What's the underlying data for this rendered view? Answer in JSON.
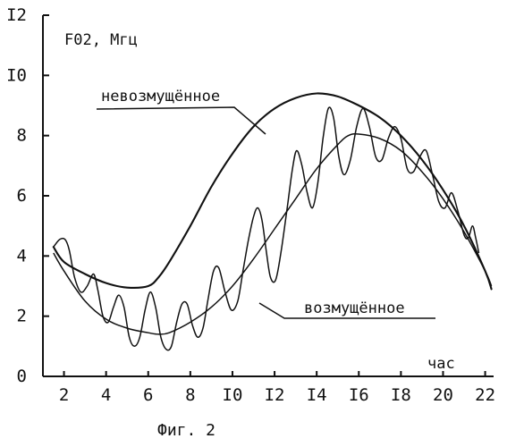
{
  "chart_data": {
    "type": "line",
    "title": "",
    "ylabel": "F02, Мгц",
    "xlabel": "час",
    "caption": "Фиг. 2",
    "xlim": [
      1,
      22.4
    ],
    "ylim": [
      0,
      12
    ],
    "x_ticks": [
      2,
      4,
      6,
      8,
      10,
      12,
      14,
      16,
      18,
      20,
      22
    ],
    "x_tick_labels": [
      "2",
      "4",
      "6",
      "8",
      "I0",
      "I2",
      "I4",
      "I6",
      "I8",
      "20",
      "22"
    ],
    "y_ticks": [
      0,
      2,
      4,
      6,
      8,
      10,
      12
    ],
    "y_tick_labels": [
      "0",
      "2",
      "4",
      "6",
      "8",
      "I0",
      "I2"
    ],
    "grid": false,
    "series": [
      {
        "name": "невозмущённое",
        "style": "solid-thick",
        "points": [
          [
            1.5,
            4.3
          ],
          [
            2,
            3.8
          ],
          [
            3,
            3.4
          ],
          [
            4,
            3.1
          ],
          [
            5,
            2.95
          ],
          [
            6,
            3.0
          ],
          [
            6.5,
            3.3
          ],
          [
            7,
            3.8
          ],
          [
            8,
            5.0
          ],
          [
            9,
            6.3
          ],
          [
            10,
            7.4
          ],
          [
            11,
            8.3
          ],
          [
            12,
            8.9
          ],
          [
            13,
            9.25
          ],
          [
            14,
            9.4
          ],
          [
            15,
            9.3
          ],
          [
            16,
            9.0
          ],
          [
            17,
            8.6
          ],
          [
            18,
            8.0
          ],
          [
            19,
            7.2
          ],
          [
            20,
            6.2
          ],
          [
            21,
            5.0
          ],
          [
            22,
            3.5
          ],
          [
            22.3,
            2.9
          ]
        ]
      },
      {
        "name": "",
        "style": "solid-thin-trend",
        "points": [
          [
            1.5,
            4.1
          ],
          [
            2,
            3.5
          ],
          [
            3,
            2.5
          ],
          [
            4,
            1.9
          ],
          [
            5,
            1.6
          ],
          [
            6,
            1.45
          ],
          [
            6.5,
            1.4
          ],
          [
            7,
            1.45
          ],
          [
            8,
            1.8
          ],
          [
            9,
            2.3
          ],
          [
            10,
            3.0
          ],
          [
            11,
            3.9
          ],
          [
            12,
            4.9
          ],
          [
            13,
            5.9
          ],
          [
            14,
            6.9
          ],
          [
            15,
            7.7
          ],
          [
            15.5,
            8.0
          ],
          [
            16,
            8.05
          ],
          [
            17,
            7.9
          ],
          [
            18,
            7.5
          ],
          [
            19,
            6.8
          ],
          [
            20,
            5.9
          ],
          [
            21,
            4.8
          ],
          [
            22,
            3.5
          ],
          [
            22.3,
            3.0
          ]
        ]
      },
      {
        "name": "возмущённое",
        "style": "oscillating",
        "points": [
          [
            1.5,
            4.3
          ],
          [
            1.8,
            4.55
          ],
          [
            2.05,
            4.55
          ],
          [
            2.25,
            4.2
          ],
          [
            2.5,
            3.3
          ],
          [
            2.8,
            2.8
          ],
          [
            3.1,
            3.0
          ],
          [
            3.4,
            3.4
          ],
          [
            3.6,
            2.9
          ],
          [
            3.85,
            2.0
          ],
          [
            4.1,
            1.8
          ],
          [
            4.35,
            2.3
          ],
          [
            4.6,
            2.7
          ],
          [
            4.85,
            2.3
          ],
          [
            5.1,
            1.3
          ],
          [
            5.35,
            1.0
          ],
          [
            5.6,
            1.3
          ],
          [
            5.85,
            2.2
          ],
          [
            6.1,
            2.8
          ],
          [
            6.35,
            2.3
          ],
          [
            6.6,
            1.3
          ],
          [
            6.85,
            0.9
          ],
          [
            7.1,
            1.0
          ],
          [
            7.35,
            1.8
          ],
          [
            7.6,
            2.4
          ],
          [
            7.85,
            2.4
          ],
          [
            8.1,
            1.7
          ],
          [
            8.35,
            1.3
          ],
          [
            8.6,
            1.6
          ],
          [
            8.85,
            2.6
          ],
          [
            9.1,
            3.5
          ],
          [
            9.35,
            3.6
          ],
          [
            9.65,
            2.8
          ],
          [
            9.95,
            2.2
          ],
          [
            10.25,
            2.5
          ],
          [
            10.5,
            3.5
          ],
          [
            10.75,
            4.5
          ],
          [
            11,
            5.3
          ],
          [
            11.2,
            5.6
          ],
          [
            11.4,
            5.2
          ],
          [
            11.6,
            4.2
          ],
          [
            11.8,
            3.3
          ],
          [
            12.05,
            3.2
          ],
          [
            12.3,
            4.1
          ],
          [
            12.6,
            5.6
          ],
          [
            12.85,
            6.9
          ],
          [
            13.05,
            7.5
          ],
          [
            13.3,
            7.0
          ],
          [
            13.55,
            6.1
          ],
          [
            13.8,
            5.6
          ],
          [
            14.05,
            6.4
          ],
          [
            14.3,
            7.9
          ],
          [
            14.55,
            8.9
          ],
          [
            14.8,
            8.6
          ],
          [
            15.05,
            7.3
          ],
          [
            15.3,
            6.7
          ],
          [
            15.6,
            7.2
          ],
          [
            15.9,
            8.3
          ],
          [
            16.2,
            8.9
          ],
          [
            16.5,
            8.3
          ],
          [
            16.8,
            7.3
          ],
          [
            17.1,
            7.2
          ],
          [
            17.4,
            7.9
          ],
          [
            17.7,
            8.3
          ],
          [
            18,
            7.9
          ],
          [
            18.3,
            6.9
          ],
          [
            18.6,
            6.8
          ],
          [
            18.9,
            7.3
          ],
          [
            19.2,
            7.5
          ],
          [
            19.5,
            6.7
          ],
          [
            19.8,
            5.8
          ],
          [
            20.1,
            5.6
          ],
          [
            20.4,
            6.1
          ],
          [
            20.7,
            5.5
          ],
          [
            21,
            4.7
          ],
          [
            21.2,
            4.6
          ],
          [
            21.4,
            5.0
          ],
          [
            21.55,
            4.6
          ],
          [
            21.7,
            4.1
          ]
        ]
      }
    ],
    "annotations": [
      {
        "text": "невозмущённое",
        "points_to": "невозмущённое"
      },
      {
        "text": "возмущённое",
        "points_to": "возмущённое"
      }
    ]
  }
}
